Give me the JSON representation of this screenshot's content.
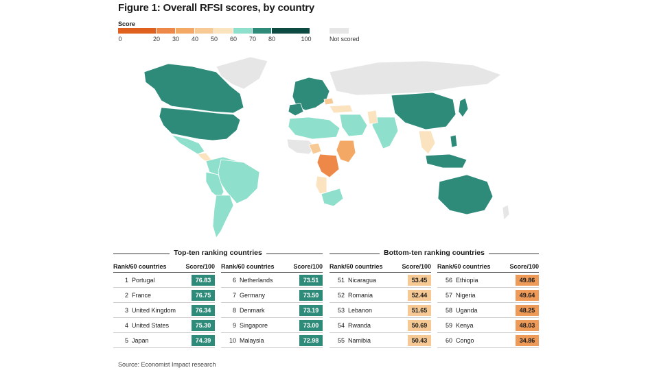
{
  "title": "Figure 1: Overall RFSI scores, by country",
  "legend": {
    "label": "Score",
    "ticks": [
      "0",
      "20",
      "30",
      "40",
      "50",
      "60",
      "70",
      "80",
      "100"
    ],
    "not_scored": "Not scored",
    "bins": [
      {
        "from": 0,
        "to": 20,
        "color": "#e0601e"
      },
      {
        "from": 20,
        "to": 30,
        "color": "#ee8848"
      },
      {
        "from": 30,
        "to": 40,
        "color": "#f4a865"
      },
      {
        "from": 40,
        "to": 50,
        "color": "#f7c994"
      },
      {
        "from": 50,
        "to": 60,
        "color": "#fbe3c0"
      },
      {
        "from": 60,
        "to": 70,
        "color": "#8edfcb"
      },
      {
        "from": 70,
        "to": 80,
        "color": "#2e8b7a"
      },
      {
        "from": 80,
        "to": 100,
        "color": "#0c4a42"
      }
    ],
    "not_scored_color": "#e6e6e6"
  },
  "chart_data": {
    "type": "table",
    "title": "Figure 1: Overall RFSI scores, by country",
    "score_max": 100,
    "total_ranked": 60,
    "top_ten": {
      "heading": "Top-ten ranking countries",
      "rank_header": "Rank/60 countries",
      "score_header": "Score/100",
      "rows": [
        {
          "rank": "1",
          "country": "Portugal",
          "score": "76.83"
        },
        {
          "rank": "2",
          "country": "France",
          "score": "76.75"
        },
        {
          "rank": "3",
          "country": "United Kingdom",
          "score": "76.34"
        },
        {
          "rank": "4",
          "country": "United States",
          "score": "75.30"
        },
        {
          "rank": "5",
          "country": "Japan",
          "score": "74.39"
        },
        {
          "rank": "6",
          "country": "Netherlands",
          "score": "73.51"
        },
        {
          "rank": "7",
          "country": "Germany",
          "score": "73.50"
        },
        {
          "rank": "8",
          "country": "Denmark",
          "score": "73.19"
        },
        {
          "rank": "9",
          "country": "Singapore",
          "score": "73.00"
        },
        {
          "rank": "10",
          "country": "Malaysia",
          "score": "72.98"
        }
      ]
    },
    "bottom_ten": {
      "heading": "Bottom-ten ranking countries",
      "rank_header": "Rank/60 countries",
      "score_header": "Score/100",
      "rows": [
        {
          "rank": "51",
          "country": "Nicaragua",
          "score": "53.45"
        },
        {
          "rank": "52",
          "country": "Romania",
          "score": "52.44"
        },
        {
          "rank": "53",
          "country": "Lebanon",
          "score": "51.65"
        },
        {
          "rank": "54",
          "country": "Rwanda",
          "score": "50.69"
        },
        {
          "rank": "55",
          "country": "Namibia",
          "score": "50.43"
        },
        {
          "rank": "56",
          "country": "Ethiopia",
          "score": "49.86"
        },
        {
          "rank": "57",
          "country": "Nigeria",
          "score": "49.64"
        },
        {
          "rank": "58",
          "country": "Uganda",
          "score": "48.25"
        },
        {
          "rank": "59",
          "country": "Kenya",
          "score": "48.03"
        },
        {
          "rank": "60",
          "country": "Congo",
          "score": "34.86"
        }
      ]
    }
  },
  "source": "Source: Economist Impact research"
}
